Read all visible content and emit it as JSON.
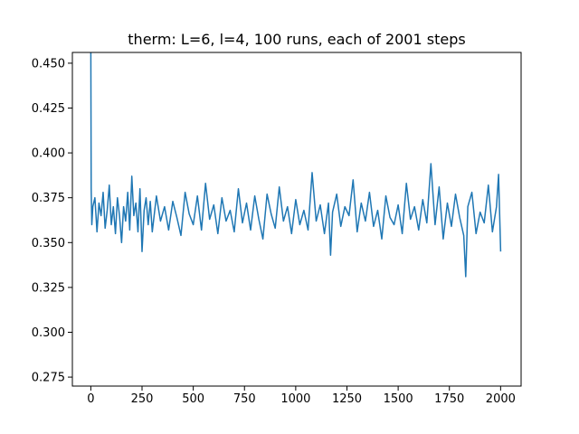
{
  "chart_data": {
    "type": "line",
    "title": "therm: L=6, l=4, 100 runs, each of 2001 steps",
    "xlabel": "",
    "ylabel": "",
    "xlim": [
      -90,
      2100
    ],
    "ylim": [
      0.27,
      0.456
    ],
    "x_ticks": [
      0,
      250,
      500,
      750,
      1000,
      1250,
      1500,
      1750,
      2000
    ],
    "y_ticks": [
      0.275,
      0.3,
      0.325,
      0.35,
      0.375,
      0.4,
      0.425,
      0.45
    ],
    "x_tick_labels": [
      "0",
      "250",
      "500",
      "750",
      "1000",
      "1250",
      "1500",
      "1750",
      "2000"
    ],
    "y_tick_labels": [
      "0.275",
      "0.300",
      "0.325",
      "0.350",
      "0.375",
      "0.400",
      "0.425",
      "0.450"
    ],
    "grid": false,
    "series": [
      {
        "color": "#1f77b4",
        "x": [
          0,
          2,
          5,
          10,
          20,
          30,
          40,
          50,
          60,
          70,
          80,
          90,
          100,
          110,
          120,
          130,
          140,
          150,
          160,
          170,
          180,
          190,
          200,
          210,
          220,
          230,
          240,
          250,
          260,
          270,
          280,
          290,
          300,
          320,
          340,
          360,
          380,
          400,
          420,
          440,
          460,
          480,
          500,
          520,
          540,
          560,
          580,
          600,
          620,
          640,
          660,
          680,
          700,
          720,
          740,
          760,
          780,
          800,
          820,
          840,
          860,
          880,
          900,
          920,
          940,
          960,
          980,
          1000,
          1020,
          1040,
          1060,
          1080,
          1100,
          1120,
          1140,
          1160,
          1170,
          1180,
          1200,
          1220,
          1240,
          1260,
          1280,
          1300,
          1320,
          1340,
          1360,
          1380,
          1400,
          1420,
          1440,
          1460,
          1480,
          1500,
          1520,
          1540,
          1560,
          1580,
          1600,
          1620,
          1640,
          1660,
          1680,
          1700,
          1720,
          1740,
          1760,
          1780,
          1800,
          1820,
          1830,
          1840,
          1860,
          1880,
          1900,
          1920,
          1940,
          1960,
          1980,
          1990,
          2000
        ],
        "y": [
          0.457,
          0.38,
          0.36,
          0.37,
          0.375,
          0.356,
          0.372,
          0.365,
          0.378,
          0.358,
          0.368,
          0.382,
          0.36,
          0.37,
          0.355,
          0.375,
          0.365,
          0.35,
          0.37,
          0.362,
          0.378,
          0.357,
          0.387,
          0.365,
          0.372,
          0.356,
          0.38,
          0.345,
          0.368,
          0.375,
          0.36,
          0.373,
          0.356,
          0.376,
          0.362,
          0.37,
          0.357,
          0.373,
          0.364,
          0.354,
          0.378,
          0.366,
          0.36,
          0.376,
          0.357,
          0.383,
          0.363,
          0.371,
          0.355,
          0.375,
          0.362,
          0.368,
          0.356,
          0.38,
          0.361,
          0.372,
          0.357,
          0.376,
          0.363,
          0.352,
          0.377,
          0.366,
          0.358,
          0.381,
          0.362,
          0.37,
          0.355,
          0.374,
          0.36,
          0.368,
          0.357,
          0.389,
          0.362,
          0.371,
          0.355,
          0.372,
          0.343,
          0.367,
          0.377,
          0.359,
          0.37,
          0.365,
          0.385,
          0.356,
          0.372,
          0.362,
          0.378,
          0.359,
          0.368,
          0.352,
          0.376,
          0.364,
          0.36,
          0.371,
          0.355,
          0.383,
          0.363,
          0.37,
          0.357,
          0.374,
          0.361,
          0.394,
          0.36,
          0.381,
          0.352,
          0.372,
          0.359,
          0.377,
          0.364,
          0.354,
          0.331,
          0.37,
          0.378,
          0.355,
          0.367,
          0.361,
          0.382,
          0.356,
          0.37,
          0.388,
          0.345
        ]
      }
    ]
  }
}
